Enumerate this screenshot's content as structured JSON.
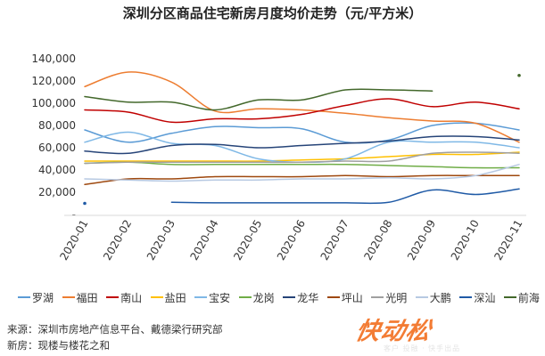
{
  "chart_data": {
    "type": "line",
    "title": "深圳分区商品住宅新房月度均价走势（元/平方米）",
    "categories": [
      "2020-01",
      "2020-02",
      "2020-03",
      "2020-04",
      "2020-05",
      "2020-06",
      "2020-07",
      "2020-08",
      "2020-09",
      "2020-10",
      "2020-11"
    ],
    "yticks": [
      "-",
      "20,000",
      "40,000",
      "60,000",
      "80,000",
      "100,000",
      "120,000",
      "140,000"
    ],
    "ylim": [
      0,
      140000
    ],
    "grid": false,
    "legend_position": "bottom",
    "series": [
      {
        "name": "罗湖",
        "color": "#5b9bd5",
        "values": [
          76000,
          65000,
          73000,
          79000,
          78000,
          77000,
          65000,
          67000,
          80000,
          82000,
          76000
        ]
      },
      {
        "name": "福田",
        "color": "#ed7d31",
        "values": [
          115000,
          128000,
          119000,
          93000,
          95000,
          94000,
          91000,
          87000,
          84000,
          82000,
          65000
        ]
      },
      {
        "name": "南山",
        "color": "#c00000",
        "values": [
          94000,
          92000,
          83000,
          86000,
          86000,
          90000,
          98000,
          104000,
          97000,
          101000,
          95000
        ]
      },
      {
        "name": "盐田",
        "color": "#ffc000",
        "values": [
          48000,
          48000,
          48000,
          48000,
          48000,
          49000,
          50000,
          52000,
          54000,
          54000,
          56000
        ]
      },
      {
        "name": "宝安",
        "color": "#7fb8e6",
        "values": [
          65000,
          74000,
          64000,
          62000,
          50000,
          47000,
          50000,
          65000,
          65000,
          65000,
          60000
        ]
      },
      {
        "name": "龙岗",
        "color": "#70ad47",
        "values": [
          46000,
          47000,
          45000,
          45000,
          45000,
          45000,
          45000,
          44000,
          43000,
          42000,
          42000
        ]
      },
      {
        "name": "龙华",
        "color": "#264478",
        "values": [
          57000,
          55000,
          62000,
          63000,
          60000,
          62000,
          64000,
          66000,
          70000,
          70000,
          67000
        ]
      },
      {
        "name": "坪山",
        "color": "#9e480e",
        "values": [
          27000,
          32000,
          32000,
          34000,
          34000,
          34000,
          35000,
          34000,
          35000,
          35000,
          35000
        ]
      },
      {
        "name": "光明",
        "color": "#a0a0a0",
        "values": [
          46000,
          47000,
          47000,
          47000,
          47000,
          47000,
          48000,
          48000,
          55000,
          56000,
          55000
        ]
      },
      {
        "name": "大鹏",
        "color": "#b7c9e2",
        "values": [
          32000,
          31000,
          30000,
          31000,
          31000,
          32000,
          32000,
          33000,
          32000,
          35000,
          45000
        ]
      },
      {
        "name": "深汕",
        "color": "#1f5aa6",
        "values": [
          10000,
          null,
          11000,
          10500,
          10500,
          10500,
          10500,
          11000,
          22000,
          18000,
          23000
        ]
      },
      {
        "name": "前海",
        "color": "#43682b",
        "values": [
          106000,
          101000,
          101000,
          94000,
          103000,
          103000,
          112000,
          112000,
          111000,
          null,
          125000
        ]
      }
    ]
  },
  "footer": {
    "source": "来源：深圳市房地产信息平台、戴德梁行研究部",
    "note": "新房：现楼与楼花之和"
  },
  "watermark": {
    "text": "快动松",
    "sub": "客户 投融 · 快手出品"
  }
}
